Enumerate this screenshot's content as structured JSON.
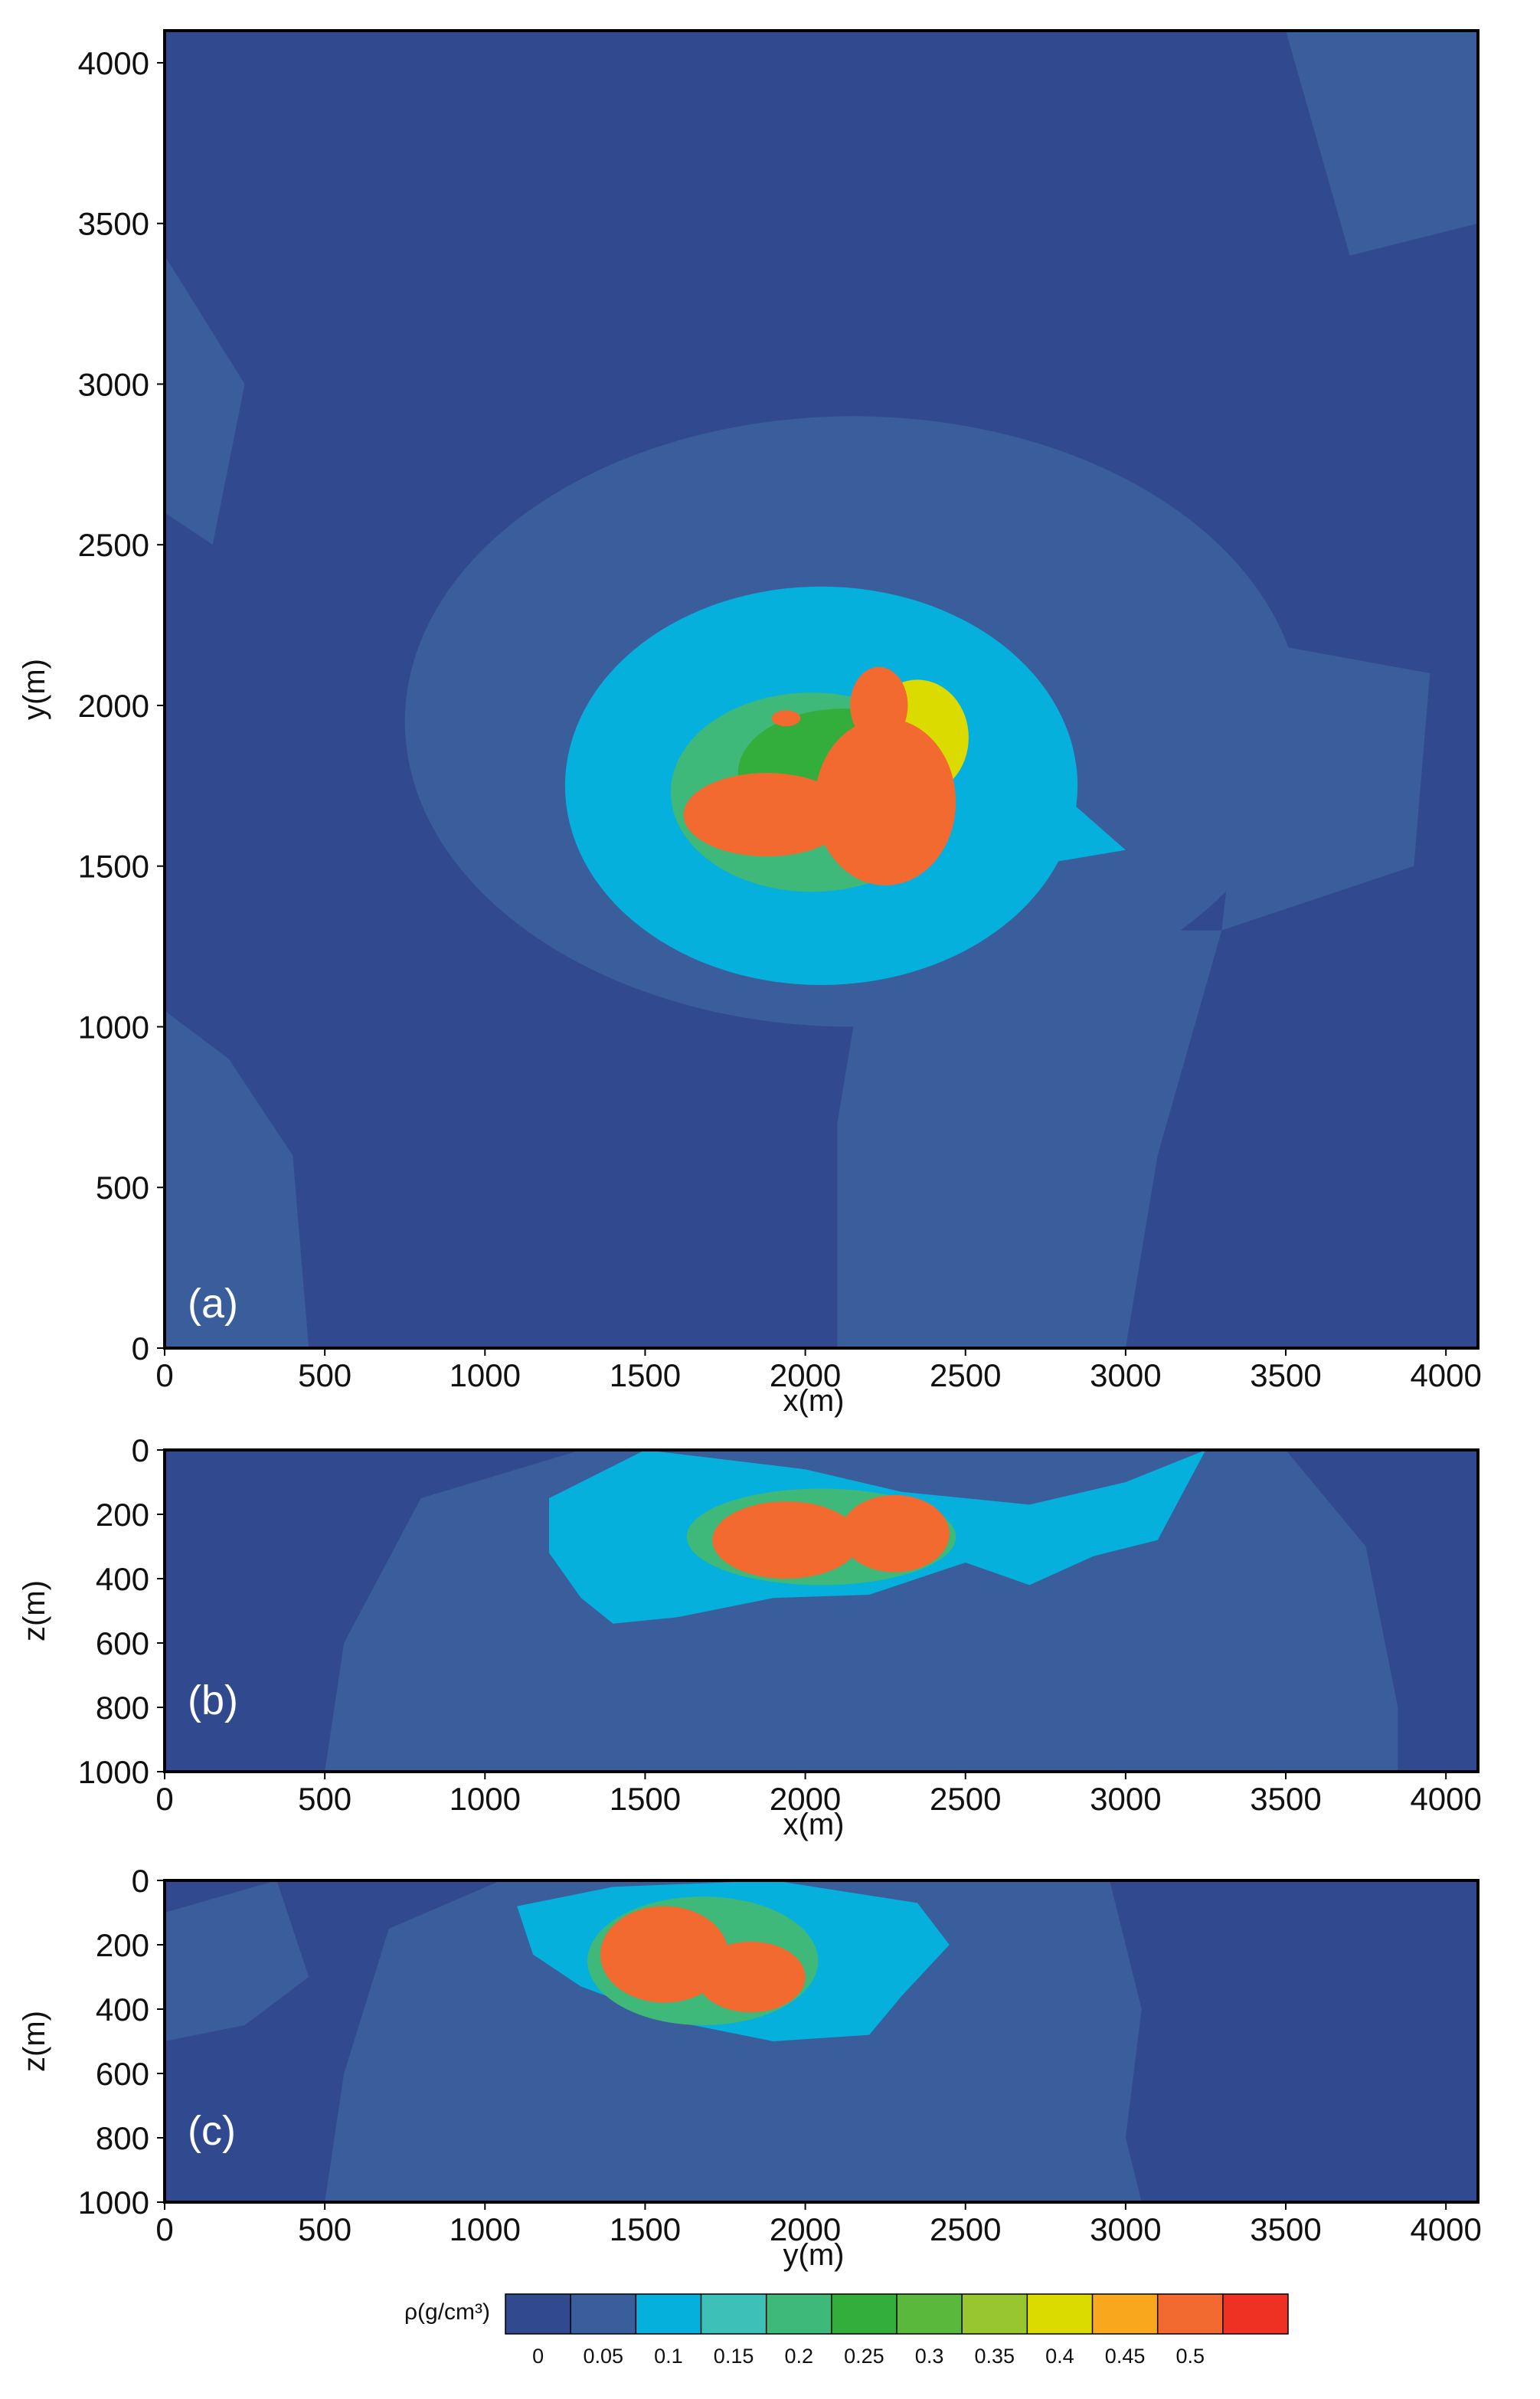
{
  "chart_data": [
    {
      "type": "heatmap",
      "panel_label": "(a)",
      "xlabel": "x(m)",
      "ylabel": "y(m)",
      "xlim": [
        0,
        4100
      ],
      "ylim": [
        0,
        4100
      ],
      "x_ticks": [
        0,
        500,
        1000,
        1500,
        2000,
        2500,
        3000,
        3500,
        4000
      ],
      "y_ticks": [
        0,
        500,
        1000,
        1500,
        2000,
        2500,
        3000,
        3500,
        4000
      ],
      "y_reversed": false,
      "regions": [
        {
          "value": 0.075,
          "shape": "ellipse",
          "center": [
            2150,
            1950
          ],
          "radii": [
            1400,
            950
          ]
        },
        {
          "value": 0.075,
          "shape": "polygon",
          "points": [
            [
              2200,
              1300
            ],
            [
              3300,
              1300
            ],
            [
              3100,
              600
            ],
            [
              3000,
              0
            ],
            [
              2100,
              0
            ],
            [
              2100,
              700
            ]
          ]
        },
        {
          "value": 0.075,
          "shape": "polygon",
          "points": [
            [
              3300,
              1300
            ],
            [
              3900,
              1500
            ],
            [
              3950,
              2100
            ],
            [
              3400,
              2200
            ]
          ]
        },
        {
          "value": 0.075,
          "shape": "polygon",
          "points": [
            [
              3500,
              4100
            ],
            [
              4100,
              4100
            ],
            [
              4100,
              3500
            ],
            [
              3700,
              3400
            ]
          ]
        },
        {
          "value": 0.075,
          "shape": "polygon",
          "points": [
            [
              0,
              0
            ],
            [
              450,
              0
            ],
            [
              400,
              600
            ],
            [
              200,
              900
            ],
            [
              0,
              1050
            ]
          ]
        },
        {
          "value": 0.075,
          "shape": "polygon",
          "points": [
            [
              0,
              2600
            ],
            [
              150,
              2500
            ],
            [
              250,
              3000
            ],
            [
              0,
              3400
            ]
          ]
        },
        {
          "value": 0.125,
          "shape": "ellipse",
          "center": [
            2050,
            1750
          ],
          "radii": [
            800,
            620
          ]
        },
        {
          "value": 0.125,
          "shape": "polygon",
          "points": [
            [
              2600,
              1900
            ],
            [
              3000,
              1550
            ],
            [
              2700,
              1500
            ]
          ]
        },
        {
          "value": 0.225,
          "shape": "ellipse",
          "center": [
            2020,
            1730
          ],
          "radii": [
            440,
            310
          ]
        },
        {
          "value": 0.275,
          "shape": "ellipse",
          "center": [
            2120,
            1790
          ],
          "radii": [
            330,
            200
          ]
        },
        {
          "value": 0.425,
          "shape": "ellipse",
          "center": [
            2350,
            1900
          ],
          "radii": [
            160,
            180
          ]
        },
        {
          "value": 0.52,
          "shape": "ellipse",
          "center": [
            1880,
            1660
          ],
          "radii": [
            260,
            130
          ]
        },
        {
          "value": 0.52,
          "shape": "ellipse",
          "center": [
            2250,
            1700
          ],
          "radii": [
            220,
            260
          ]
        },
        {
          "value": 0.52,
          "shape": "ellipse",
          "center": [
            2230,
            2000
          ],
          "radii": [
            90,
            120
          ]
        },
        {
          "value": 0.52,
          "shape": "ellipse",
          "center": [
            1940,
            1960
          ],
          "radii": [
            45,
            25
          ]
        }
      ]
    },
    {
      "type": "heatmap",
      "panel_label": "(b)",
      "xlabel": "x(m)",
      "ylabel": "z(m)",
      "xlim": [
        0,
        4100
      ],
      "ylim": [
        0,
        1000
      ],
      "x_ticks": [
        0,
        500,
        1000,
        1500,
        2000,
        2500,
        3000,
        3500,
        4000
      ],
      "y_ticks": [
        0,
        200,
        400,
        600,
        800,
        1000
      ],
      "y_reversed": true,
      "regions": [
        {
          "value": 0.075,
          "shape": "polygon",
          "points": [
            [
              500,
              1000
            ],
            [
              560,
              600
            ],
            [
              800,
              150
            ],
            [
              1300,
              0
            ],
            [
              3500,
              0
            ],
            [
              3750,
              300
            ],
            [
              3850,
              800
            ],
            [
              3850,
              1000
            ]
          ]
        },
        {
          "value": 0.125,
          "shape": "polygon",
          "points": [
            [
              1200,
              150
            ],
            [
              1500,
              0
            ],
            [
              2000,
              60
            ],
            [
              2300,
              130
            ],
            [
              2700,
              170
            ],
            [
              3000,
              100
            ],
            [
              3250,
              0
            ],
            [
              3100,
              280
            ],
            [
              2900,
              330
            ],
            [
              2700,
              420
            ],
            [
              2500,
              350
            ],
            [
              2200,
              450
            ],
            [
              1900,
              460
            ],
            [
              1600,
              520
            ],
            [
              1400,
              540
            ],
            [
              1300,
              460
            ],
            [
              1200,
              320
            ]
          ]
        },
        {
          "value": 0.225,
          "shape": "ellipse",
          "center": [
            2050,
            270
          ],
          "radii": [
            420,
            150
          ]
        },
        {
          "value": 0.52,
          "shape": "ellipse",
          "center": [
            1940,
            280
          ],
          "radii": [
            230,
            120
          ]
        },
        {
          "value": 0.52,
          "shape": "ellipse",
          "center": [
            2280,
            260
          ],
          "radii": [
            170,
            120
          ]
        }
      ]
    },
    {
      "type": "heatmap",
      "panel_label": "(c)",
      "xlabel": "y(m)",
      "ylabel": "z(m)",
      "xlim": [
        0,
        4100
      ],
      "ylim": [
        0,
        1000
      ],
      "x_ticks": [
        0,
        500,
        1000,
        1500,
        2000,
        2500,
        3000,
        3500,
        4000
      ],
      "y_ticks": [
        0,
        200,
        400,
        600,
        800,
        1000
      ],
      "y_reversed": true,
      "regions": [
        {
          "value": 0.075,
          "shape": "polygon",
          "points": [
            [
              500,
              1000
            ],
            [
              560,
              600
            ],
            [
              700,
              150
            ],
            [
              1050,
              0
            ],
            [
              2950,
              0
            ],
            [
              3050,
              400
            ],
            [
              3000,
              800
            ],
            [
              3050,
              1000
            ]
          ]
        },
        {
          "value": 0.075,
          "shape": "polygon",
          "points": [
            [
              0,
              100
            ],
            [
              350,
              0
            ],
            [
              450,
              300
            ],
            [
              250,
              450
            ],
            [
              0,
              500
            ]
          ]
        },
        {
          "value": 0.125,
          "shape": "polygon",
          "points": [
            [
              1100,
              80
            ],
            [
              1400,
              20
            ],
            [
              1900,
              0
            ],
            [
              2350,
              70
            ],
            [
              2450,
              200
            ],
            [
              2300,
              360
            ],
            [
              2200,
              480
            ],
            [
              1900,
              500
            ],
            [
              1600,
              440
            ],
            [
              1300,
              330
            ],
            [
              1150,
              230
            ]
          ]
        },
        {
          "value": 0.225,
          "shape": "ellipse",
          "center": [
            1680,
            250
          ],
          "radii": [
            360,
            200
          ]
        },
        {
          "value": 0.52,
          "shape": "ellipse",
          "center": [
            1560,
            230
          ],
          "radii": [
            200,
            150
          ]
        },
        {
          "value": 0.52,
          "shape": "ellipse",
          "center": [
            1830,
            300
          ],
          "radii": [
            170,
            110
          ]
        }
      ]
    }
  ],
  "colorbar": {
    "label": "ρ(g/cm³)",
    "tick_labels": [
      "0",
      "0.05",
      "0.1",
      "0.15",
      "0.2",
      "0.25",
      "0.3",
      "0.35",
      "0.4",
      "0.45",
      "0.5"
    ],
    "bins": [
      {
        "from": 0.0,
        "to": 0.05,
        "color": "#31498f"
      },
      {
        "from": 0.05,
        "to": 0.1,
        "color": "#3a5d9b"
      },
      {
        "from": 0.1,
        "to": 0.15,
        "color": "#05b0dd"
      },
      {
        "from": 0.15,
        "to": 0.2,
        "color": "#3cc0b7"
      },
      {
        "from": 0.2,
        "to": 0.25,
        "color": "#3fb97a"
      },
      {
        "from": 0.25,
        "to": 0.3,
        "color": "#33ad3b"
      },
      {
        "from": 0.3,
        "to": 0.35,
        "color": "#5ab93c"
      },
      {
        "from": 0.35,
        "to": 0.4,
        "color": "#98c62f"
      },
      {
        "from": 0.4,
        "to": 0.45,
        "color": "#dcdb00"
      },
      {
        "from": 0.45,
        "to": 0.5,
        "color": "#f9a81e"
      },
      {
        "from": 0.5,
        "to": 0.55,
        "color": "#f36a30"
      },
      {
        "from": 0.55,
        "to": 0.6,
        "color": "#ef3124"
      }
    ]
  }
}
